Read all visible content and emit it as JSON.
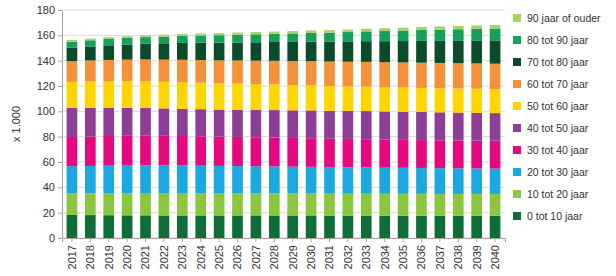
{
  "chart_data": {
    "type": "bar",
    "stacked": true,
    "grid": true,
    "legend": "right",
    "y_label": "x 1.000",
    "categories": [
      "2017",
      "2018",
      "2019",
      "2020",
      "2021",
      "2022",
      "2023",
      "2024",
      "2025",
      "2026",
      "2027",
      "2028",
      "2029",
      "2030",
      "2031",
      "2032",
      "2033",
      "2034",
      "2035",
      "2036",
      "2037",
      "2038",
      "2039",
      "2040"
    ],
    "ylim": [
      0,
      180
    ],
    "yticks": [
      0,
      20,
      40,
      60,
      80,
      100,
      120,
      140,
      160,
      180
    ],
    "series": [
      {
        "name": "0 tot 10 jaar",
        "color": "#0e6e36",
        "values": [
          18.2,
          18.1,
          18.0,
          17.9,
          17.9,
          17.8,
          17.8,
          17.8,
          17.8,
          17.8,
          17.8,
          17.8,
          17.8,
          17.8,
          17.7,
          17.7,
          17.7,
          17.6,
          17.6,
          17.6,
          17.5,
          17.5,
          17.5,
          17.5
        ]
      },
      {
        "name": "10 tot 20 jaar",
        "color": "#8cc63f",
        "values": [
          17.0,
          17.2,
          17.4,
          17.5,
          17.6,
          17.7,
          17.7,
          17.7,
          17.6,
          17.6,
          17.5,
          17.5,
          17.4,
          17.4,
          17.3,
          17.3,
          17.3,
          17.3,
          17.3,
          17.3,
          17.3,
          17.3,
          17.3,
          17.3
        ]
      },
      {
        "name": "20 tot 30 jaar",
        "color": "#1ba7e0",
        "values": [
          21.5,
          21.6,
          21.7,
          21.8,
          21.8,
          21.8,
          21.7,
          21.6,
          21.5,
          21.4,
          21.3,
          21.2,
          21.1,
          21.0,
          20.9,
          20.8,
          20.7,
          20.6,
          20.5,
          20.4,
          20.3,
          20.2,
          20.1,
          20.0
        ]
      },
      {
        "name": "30 tot 40 jaar",
        "color": "#e5097f",
        "values": [
          23.0,
          23.2,
          23.4,
          23.5,
          23.5,
          23.4,
          23.3,
          23.2,
          23.1,
          23.0,
          22.9,
          22.8,
          22.7,
          22.6,
          22.5,
          22.4,
          22.3,
          22.2,
          22.1,
          22.0,
          22.0,
          22.0,
          22.0,
          22.0
        ]
      },
      {
        "name": "40 tot 50 jaar",
        "color": "#8e3e97",
        "values": [
          23.0,
          22.7,
          22.4,
          22.1,
          21.8,
          21.6,
          21.5,
          21.4,
          21.4,
          21.5,
          21.6,
          21.7,
          21.8,
          21.9,
          22.0,
          22.1,
          22.2,
          22.2,
          22.2,
          22.2,
          22.1,
          22.0,
          21.9,
          21.8
        ]
      },
      {
        "name": "50 tot 60 jaar",
        "color": "#ffd500",
        "values": [
          20.5,
          20.7,
          20.8,
          20.9,
          21.0,
          21.0,
          21.0,
          20.9,
          20.8,
          20.6,
          20.4,
          20.2,
          20.0,
          19.8,
          19.6,
          19.4,
          19.3,
          19.2,
          19.1,
          19.0,
          19.0,
          19.0,
          19.0,
          19.0
        ]
      },
      {
        "name": "60 tot 70 jaar",
        "color": "#f4913a",
        "values": [
          16.5,
          16.7,
          16.9,
          17.1,
          17.3,
          17.5,
          17.7,
          17.9,
          18.1,
          18.3,
          18.5,
          18.7,
          18.9,
          19.1,
          19.3,
          19.5,
          19.6,
          19.7,
          19.8,
          19.9,
          20.0,
          20.0,
          20.0,
          20.0
        ]
      },
      {
        "name": "70 tot 80 jaar",
        "color": "#0b4a2a",
        "values": [
          10.5,
          11.0,
          11.5,
          12.0,
          12.5,
          12.9,
          13.3,
          13.6,
          13.9,
          14.2,
          14.5,
          14.8,
          15.1,
          15.4,
          15.7,
          16.0,
          16.3,
          16.6,
          16.9,
          17.2,
          17.4,
          17.6,
          17.8,
          18.0
        ]
      },
      {
        "name": "80 tot 90 jaar",
        "color": "#16a05a",
        "values": [
          4.8,
          4.9,
          5.0,
          5.1,
          5.2,
          5.3,
          5.5,
          5.7,
          5.9,
          6.1,
          6.3,
          6.5,
          6.7,
          6.9,
          7.1,
          7.4,
          7.7,
          8.0,
          8.3,
          8.6,
          8.9,
          9.2,
          9.5,
          9.8
        ]
      },
      {
        "name": "90 jaar of ouder",
        "color": "#a8d26a",
        "values": [
          1.3,
          1.3,
          1.4,
          1.4,
          1.5,
          1.5,
          1.6,
          1.6,
          1.7,
          1.7,
          1.8,
          1.8,
          1.9,
          1.9,
          2.0,
          2.0,
          2.1,
          2.2,
          2.3,
          2.4,
          2.5,
          2.6,
          2.7,
          2.8
        ]
      }
    ]
  }
}
